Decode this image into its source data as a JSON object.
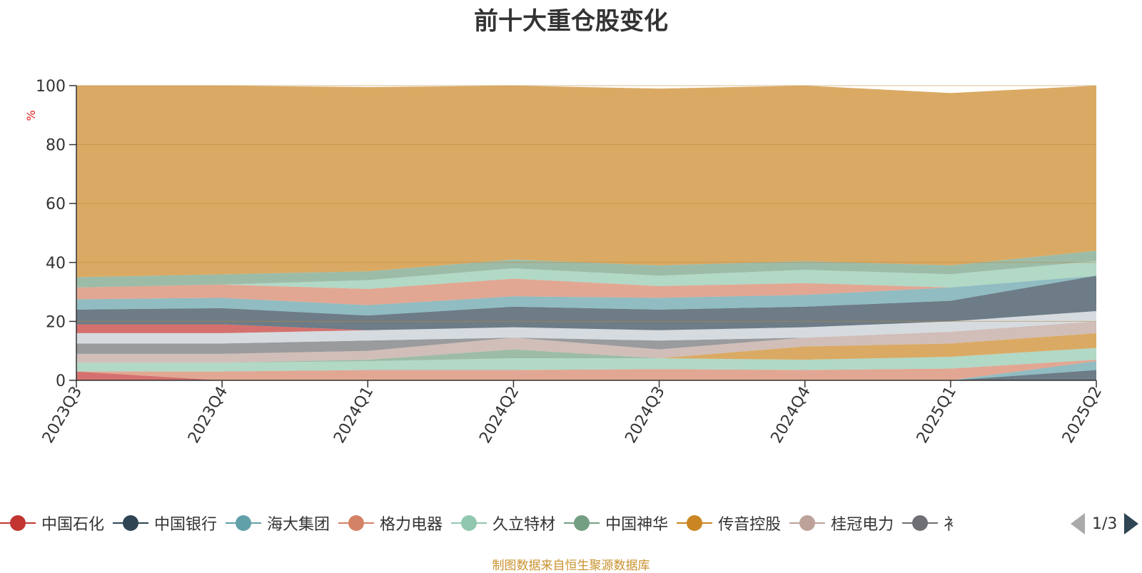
{
  "page_title": "前十大重仓股变化",
  "source_note": "制图数据来自恒生聚源数据库",
  "legend": {
    "items": [
      {
        "label": "中国石化",
        "color": "#c23531"
      },
      {
        "label": "中国银行",
        "color": "#2f4554"
      },
      {
        "label": "海大集团",
        "color": "#61a0a8"
      },
      {
        "label": "格力电器",
        "color": "#d48265"
      },
      {
        "label": "久立特材",
        "color": "#91c7ae"
      },
      {
        "label": "中国神华",
        "color": "#749f83"
      },
      {
        "label": "传音控股",
        "color": "#ca8622"
      },
      {
        "label": "桂冠电力",
        "color": "#bda29a"
      },
      {
        "label": "衤",
        "color": "#6e7074"
      }
    ],
    "pager": "1/3"
  },
  "chart_data": {
    "type": "area",
    "stacked": true,
    "title": "前十大重仓股变化",
    "ylabel": "%",
    "ylim": [
      0,
      100
    ],
    "yticks": [
      0,
      20,
      40,
      60,
      80,
      100
    ],
    "grid": true,
    "categories": [
      "2023Q3",
      "2023Q4",
      "2024Q1",
      "2024Q2",
      "2024Q3",
      "2024Q4",
      "2025Q1",
      "2025Q2"
    ],
    "series": [
      {
        "color": "#c23531",
        "values": [
          3.0,
          0,
          0,
          0,
          0,
          0,
          0,
          0
        ]
      },
      {
        "color": "#2f4554",
        "values": [
          0,
          0,
          0,
          0,
          0,
          0,
          0,
          3.5
        ]
      },
      {
        "color": "#61a0a8",
        "values": [
          0,
          0,
          0,
          0,
          0,
          0,
          0,
          3.0
        ]
      },
      {
        "color": "#d48265",
        "values": [
          0,
          3.0,
          3.5,
          3.5,
          3.8,
          3.5,
          4.0,
          0.5
        ]
      },
      {
        "color": "#91c7ae",
        "values": [
          3.0,
          3.0,
          3.0,
          4.0,
          3.7,
          3.5,
          4.0,
          4.0
        ]
      },
      {
        "color": "#749f83",
        "values": [
          0,
          0,
          0.5,
          3.0,
          0,
          0,
          0,
          0
        ]
      },
      {
        "color": "#ca8622",
        "values": [
          0,
          0,
          0,
          0,
          0,
          4.5,
          4.5,
          5.0
        ]
      },
      {
        "color": "#bda29a",
        "values": [
          3.0,
          3.0,
          3.0,
          4.0,
          3.0,
          3.0,
          4.0,
          4.0
        ]
      },
      {
        "color": "#6e7074",
        "values": [
          3.5,
          3.5,
          3.5,
          0,
          3.0,
          0,
          0,
          0
        ]
      },
      {
        "color": "#c4ccd3",
        "values": [
          3.5,
          3.5,
          3.5,
          3.5,
          3.5,
          3.5,
          3.5,
          3.5
        ]
      },
      {
        "color": "#c23531",
        "values": [
          3.0,
          3.0,
          0,
          0,
          0,
          0,
          0,
          0
        ]
      },
      {
        "color": "#2f4554",
        "values": [
          5.0,
          5.5,
          5.0,
          7.0,
          7.0,
          7.0,
          7.0,
          12.0
        ]
      },
      {
        "color": "#61a0a8",
        "values": [
          3.5,
          3.5,
          3.5,
          3.5,
          4.0,
          4.0,
          4.5,
          0
        ]
      },
      {
        "color": "#d48265",
        "values": [
          4.0,
          4.5,
          5.5,
          6.0,
          4.0,
          4.0,
          0,
          0
        ]
      },
      {
        "color": "#91c7ae",
        "values": [
          0,
          0,
          3.0,
          3.5,
          3.5,
          4.5,
          4.5,
          5.0
        ]
      },
      {
        "color": "#749f83",
        "values": [
          3.5,
          3.5,
          3.0,
          3.0,
          3.5,
          3.0,
          3.0,
          3.5
        ]
      },
      {
        "color": "#ca8622",
        "values": [
          65.0,
          64.0,
          62.5,
          59.0,
          60.0,
          59.5,
          58.5,
          56.0
        ]
      }
    ]
  }
}
